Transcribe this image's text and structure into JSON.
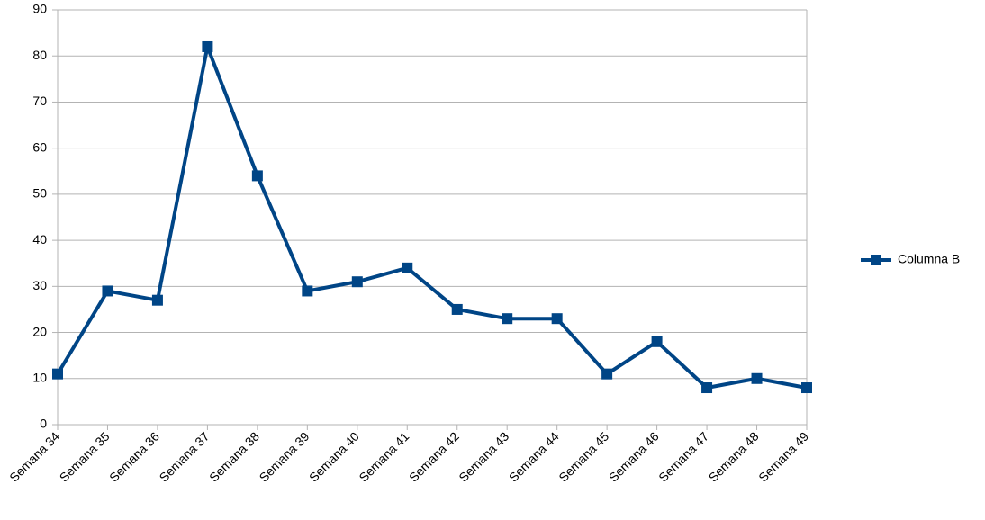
{
  "chart_data": {
    "type": "line",
    "categories": [
      "Semana 34",
      "Semana 35",
      "Semana 36",
      "Semana 37",
      "Semana 38",
      "Semana 39",
      "Semana 40",
      "Semana 41",
      "Semana 42",
      "Semana 43",
      "Semana 44",
      "Semana 45",
      "Semana 46",
      "Semana 47",
      "Semana 48",
      "Semana 49"
    ],
    "series": [
      {
        "name": "Columna B",
        "values": [
          11,
          29,
          27,
          82,
          54,
          29,
          31,
          34,
          25,
          23,
          23,
          11,
          18,
          8,
          10,
          8
        ],
        "color": "#004586"
      }
    ],
    "ylim": [
      0,
      90
    ],
    "yticks": [
      0,
      10,
      20,
      30,
      40,
      50,
      60,
      70,
      80,
      90
    ],
    "grid": true,
    "legend_position": "right",
    "marker": "square"
  }
}
